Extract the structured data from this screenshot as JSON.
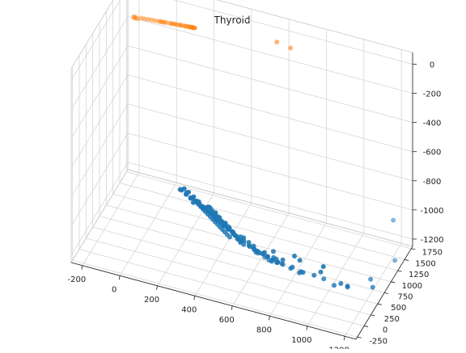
{
  "chart_data": {
    "type": "scatter",
    "projection": "3d",
    "title": "Thyroid",
    "xlabel": "",
    "ylabel": "",
    "zlabel": "",
    "grid": true,
    "legend": "none",
    "xlim": [
      -260,
      1260
    ],
    "ylim": [
      -300,
      1800
    ],
    "zlim": [
      -1250,
      80
    ],
    "x_ticks": [
      -200,
      0,
      200,
      400,
      600,
      800,
      1000,
      1200
    ],
    "y_ticks": [
      -250,
      0,
      250,
      500,
      750,
      1000,
      1250,
      1500,
      1750
    ],
    "z_ticks": [
      0,
      -200,
      -400,
      -600,
      -800,
      -1000,
      -1200
    ],
    "series": [
      {
        "color": "#1f77b4",
        "points": [
          [
            300,
            0,
            -640
          ],
          [
            322,
            10,
            -660
          ],
          [
            350,
            5,
            -680
          ],
          [
            280,
            -10,
            -650
          ],
          [
            330,
            30,
            -700
          ],
          [
            305,
            40,
            -690
          ],
          [
            340,
            60,
            -740
          ],
          [
            360,
            30,
            -720
          ],
          [
            380,
            80,
            -760
          ],
          [
            400,
            100,
            -780
          ],
          [
            390,
            60,
            -760
          ],
          [
            420,
            120,
            -800
          ],
          [
            430,
            90,
            -790
          ],
          [
            440,
            140,
            -830
          ],
          [
            450,
            160,
            -850
          ],
          [
            460,
            130,
            -840
          ],
          [
            470,
            180,
            -870
          ],
          [
            480,
            200,
            -890
          ],
          [
            490,
            160,
            -880
          ],
          [
            500,
            220,
            -910
          ],
          [
            410,
            40,
            -760
          ],
          [
            425,
            70,
            -780
          ],
          [
            445,
            50,
            -780
          ],
          [
            455,
            100,
            -810
          ],
          [
            465,
            80,
            -810
          ],
          [
            475,
            120,
            -840
          ],
          [
            485,
            60,
            -820
          ],
          [
            495,
            140,
            -860
          ],
          [
            505,
            90,
            -850
          ],
          [
            515,
            170,
            -890
          ],
          [
            520,
            120,
            -880
          ],
          [
            530,
            200,
            -920
          ],
          [
            535,
            150,
            -900
          ],
          [
            540,
            230,
            -950
          ],
          [
            545,
            180,
            -930
          ],
          [
            550,
            260,
            -980
          ],
          [
            555,
            210,
            -960
          ],
          [
            560,
            300,
            -1000
          ],
          [
            565,
            240,
            -990
          ],
          [
            570,
            330,
            -1030
          ],
          [
            360,
            50,
            -720
          ],
          [
            370,
            90,
            -750
          ],
          [
            375,
            20,
            -710
          ],
          [
            385,
            110,
            -770
          ],
          [
            395,
            30,
            -740
          ],
          [
            405,
            150,
            -800
          ],
          [
            415,
            10,
            -740
          ],
          [
            435,
            130,
            -810
          ],
          [
            440,
            20,
            -760
          ],
          [
            452,
            190,
            -860
          ],
          [
            468,
            40,
            -790
          ],
          [
            478,
            220,
            -890
          ],
          [
            488,
            30,
            -800
          ],
          [
            498,
            250,
            -920
          ],
          [
            508,
            50,
            -830
          ],
          [
            518,
            280,
            -950
          ],
          [
            528,
            70,
            -860
          ],
          [
            538,
            310,
            -980
          ],
          [
            548,
            90,
            -890
          ],
          [
            558,
            340,
            -1010
          ],
          [
            600,
            350,
            -1040
          ],
          [
            620,
            380,
            -1060
          ],
          [
            640,
            330,
            -1050
          ],
          [
            660,
            420,
            -1090
          ],
          [
            680,
            450,
            -1110
          ],
          [
            590,
            200,
            -960
          ],
          [
            610,
            250,
            -1000
          ],
          [
            630,
            280,
            -1020
          ],
          [
            650,
            300,
            -1040
          ],
          [
            670,
            360,
            -1070
          ],
          [
            690,
            390,
            -1090
          ],
          [
            710,
            440,
            -1120
          ],
          [
            730,
            470,
            -1140
          ],
          [
            700,
            300,
            -1060
          ],
          [
            720,
            340,
            -1090
          ],
          [
            740,
            380,
            -1110
          ],
          [
            580,
            150,
            -920
          ],
          [
            600,
            120,
            -910
          ],
          [
            620,
            170,
            -950
          ],
          [
            640,
            210,
            -980
          ],
          [
            280,
            40,
            -670
          ],
          [
            300,
            70,
            -700
          ],
          [
            310,
            20,
            -670
          ],
          [
            320,
            100,
            -730
          ],
          [
            335,
            80,
            -720
          ],
          [
            345,
            120,
            -750
          ],
          [
            355,
            140,
            -770
          ],
          [
            365,
            160,
            -790
          ],
          [
            375,
            180,
            -810
          ],
          [
            385,
            200,
            -830
          ],
          [
            395,
            220,
            -850
          ],
          [
            405,
            240,
            -870
          ],
          [
            415,
            260,
            -890
          ],
          [
            425,
            280,
            -910
          ],
          [
            435,
            300,
            -930
          ],
          [
            445,
            320,
            -950
          ],
          [
            455,
            340,
            -970
          ],
          [
            465,
            360,
            -990
          ],
          [
            475,
            380,
            -1010
          ],
          [
            485,
            400,
            -1030
          ],
          [
            420,
            10,
            -730
          ],
          [
            430,
            0,
            -720
          ],
          [
            440,
            -10,
            -720
          ],
          [
            450,
            0,
            -740
          ],
          [
            460,
            10,
            -760
          ],
          [
            470,
            -20,
            -740
          ],
          [
            480,
            0,
            -770
          ],
          [
            490,
            -10,
            -770
          ],
          [
            500,
            10,
            -800
          ],
          [
            510,
            20,
            -820
          ],
          [
            520,
            0,
            -800
          ],
          [
            530,
            30,
            -830
          ],
          [
            540,
            10,
            -830
          ],
          [
            550,
            40,
            -860
          ],
          [
            560,
            20,
            -860
          ],
          [
            700,
            200,
            -1000
          ],
          [
            740,
            260,
            -1040
          ],
          [
            780,
            300,
            -1080
          ],
          [
            820,
            340,
            -1110
          ],
          [
            860,
            380,
            -1140
          ],
          [
            760,
            220,
            -1030
          ],
          [
            800,
            180,
            -1010
          ],
          [
            840,
            260,
            -1070
          ],
          [
            880,
            300,
            -1100
          ],
          [
            900,
            240,
            -1080
          ],
          [
            620,
            520,
            -1130
          ],
          [
            650,
            560,
            -1160
          ],
          [
            680,
            600,
            -1190
          ],
          [
            660,
            640,
            -1200
          ],
          [
            700,
            680,
            -1210
          ],
          [
            640,
            480,
            -1110
          ],
          [
            610,
            450,
            -1090
          ],
          [
            720,
            560,
            -1170
          ],
          [
            740,
            600,
            -1190
          ],
          [
            600,
            580,
            -1150
          ],
          [
            750,
            180,
            -970
          ],
          [
            900,
            120,
            -960
          ],
          [
            1000,
            200,
            -1030
          ],
          [
            1100,
            250,
            -1090
          ],
          [
            1150,
            150,
            -1060
          ],
          [
            950,
            300,
            -1100
          ],
          [
            1050,
            350,
            -1150
          ],
          [
            1180,
            800,
            -1200
          ],
          [
            1220,
            600,
            -1180
          ],
          [
            980,
            450,
            -1160
          ],
          [
            1050,
            -50,
            -900
          ],
          [
            1200,
            1500,
            -1000
          ],
          [
            1230,
            1350,
            -1220
          ],
          [
            880,
            60,
            -920
          ],
          [
            1100,
            500,
            -1190
          ]
        ]
      },
      {
        "color": "#ff7f0e",
        "points": [
          [
            -200,
            1600,
            -120
          ],
          [
            -195,
            1600,
            -128
          ],
          [
            -190,
            1598,
            -118
          ],
          [
            -180,
            1596,
            -125
          ],
          [
            -160,
            1590,
            -112
          ],
          [
            -140,
            1585,
            -108
          ],
          [
            -120,
            1580,
            -104
          ],
          [
            -100,
            1575,
            -100
          ],
          [
            -80,
            1570,
            -96
          ],
          [
            -60,
            1565,
            -92
          ],
          [
            -40,
            1560,
            -88
          ],
          [
            -20,
            1555,
            -84
          ],
          [
            0,
            1550,
            -80
          ],
          [
            20,
            1545,
            -76
          ],
          [
            40,
            1540,
            -72
          ],
          [
            55,
            1536,
            -69
          ],
          [
            70,
            1532,
            -66
          ],
          [
            85,
            1528,
            -63
          ],
          [
            100,
            1524,
            -60
          ],
          [
            110,
            1520,
            -58
          ],
          [
            120,
            1517,
            -56
          ],
          [
            130,
            1514,
            -54
          ],
          [
            140,
            1511,
            -52
          ],
          [
            -50,
            1562,
            -90
          ],
          [
            -30,
            1558,
            -86
          ],
          [
            10,
            1548,
            -78
          ],
          [
            30,
            1542,
            -74
          ],
          [
            60,
            1534,
            -68
          ],
          [
            90,
            1526,
            -62
          ],
          [
            115,
            1518,
            -57
          ],
          [
            125,
            1516,
            -55
          ],
          [
            135,
            1512,
            -53
          ],
          [
            600,
            1350,
            60
          ],
          [
            680,
            1300,
            62
          ]
        ]
      }
    ]
  }
}
